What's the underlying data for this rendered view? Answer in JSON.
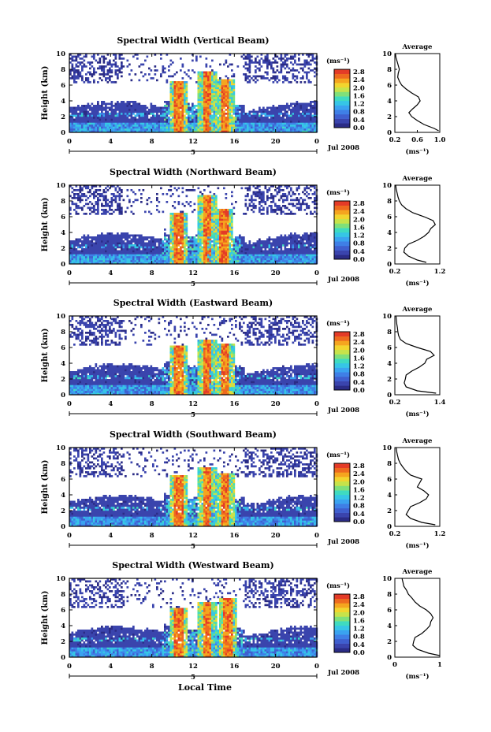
{
  "x_axis_label": "Local Time",
  "date_label": "Jul 2008",
  "colorbar": {
    "unit": "(ms⁻¹)",
    "ticks": [
      "2.8",
      "2.4",
      "2.0",
      "1.6",
      "1.2",
      "0.8",
      "0.4",
      "0.0"
    ],
    "colors": [
      "#2b2c86",
      "#3a44ad",
      "#3f5fcf",
      "#3f7fe6",
      "#3aa3f0",
      "#36c6e6",
      "#3fdbc0",
      "#7fe07a",
      "#c7e34a",
      "#f2d52e",
      "#f5a51f",
      "#ee6a1f",
      "#e43b27"
    ]
  },
  "average_title": "Average",
  "average_xlabel": "(ms⁻¹)",
  "chart_data": [
    {
      "type": "heatmap",
      "title": "Spectral Width (Vertical Beam)",
      "ylabel": "Height (km)",
      "xlabel": "Local Time",
      "x_ticks": [
        "0",
        "4",
        "8",
        "12",
        "16",
        "20",
        "0"
      ],
      "day_marker": "5",
      "xlim": [
        0,
        24
      ],
      "ylim": [
        0,
        10
      ],
      "y_ticks": [
        "0",
        "2",
        "4",
        "6",
        "8",
        "10"
      ],
      "bursts": [
        [
          10.5,
          6.4
        ],
        [
          13.3,
          7.6
        ],
        [
          15.0,
          6.7
        ]
      ],
      "profile": {
        "type": "line",
        "xlim": [
          0.2,
          1.0
        ],
        "x_ticks": [
          "0.2",
          "0.6",
          "1.0"
        ],
        "y_ticks": [
          "0",
          "2",
          "4",
          "6",
          "8",
          "10"
        ],
        "values": [
          0.98,
          0.9,
          0.72,
          0.6,
          0.5,
          0.45,
          0.52,
          0.6,
          0.65,
          0.62,
          0.5,
          0.4,
          0.32,
          0.28,
          0.25,
          0.26,
          0.28,
          0.26,
          0.24,
          0.22,
          0.21
        ],
        "heights": [
          0.2,
          0.5,
          1.0,
          1.5,
          2.0,
          2.5,
          3.0,
          3.5,
          4.0,
          4.5,
          5.0,
          5.5,
          6.0,
          6.5,
          7.0,
          7.5,
          8.0,
          8.5,
          9.0,
          9.5,
          10.0
        ]
      }
    },
    {
      "type": "heatmap",
      "title": "Spectral Width (Northward Beam)",
      "ylabel": "Height (km)",
      "xlabel": "Local Time",
      "x_ticks": [
        "0",
        "4",
        "8",
        "12",
        "16",
        "20",
        "0"
      ],
      "day_marker": "5",
      "xlim": [
        0,
        24
      ],
      "ylim": [
        0,
        10
      ],
      "y_ticks": [
        "0",
        "2",
        "4",
        "6",
        "8",
        "10"
      ],
      "bursts": [
        [
          10.5,
          6.4
        ],
        [
          13.3,
          8.6
        ],
        [
          14.9,
          7.0
        ]
      ],
      "profile": {
        "type": "line",
        "xlim": [
          0.2,
          1.2
        ],
        "x_ticks": [
          "0.2",
          "1.2"
        ],
        "y_ticks": [
          "0",
          "2",
          "4",
          "6",
          "8",
          "10"
        ],
        "values": [
          0.9,
          0.7,
          0.5,
          0.4,
          0.42,
          0.5,
          0.7,
          0.85,
          0.95,
          1.0,
          1.1,
          1.05,
          0.85,
          0.6,
          0.45,
          0.35,
          0.3,
          0.27,
          0.25,
          0.23,
          0.22
        ],
        "heights": [
          0.2,
          0.5,
          1.0,
          1.5,
          2.0,
          2.5,
          3.0,
          3.5,
          4.0,
          4.5,
          5.0,
          5.5,
          6.0,
          6.5,
          7.0,
          7.5,
          8.0,
          8.5,
          9.0,
          9.5,
          10.0
        ]
      }
    },
    {
      "type": "heatmap",
      "title": "Spectral Width (Eastward Beam)",
      "ylabel": "Height (km)",
      "xlabel": "Local Time",
      "x_ticks": [
        "0",
        "4",
        "8",
        "12",
        "16",
        "20",
        "0"
      ],
      "day_marker": "5",
      "xlim": [
        0,
        24
      ],
      "ylim": [
        0,
        10
      ],
      "y_ticks": [
        "0",
        "2",
        "4",
        "6",
        "8",
        "10"
      ],
      "bursts": [
        [
          10.5,
          6.2
        ],
        [
          13.3,
          6.8
        ],
        [
          15.0,
          6.5
        ]
      ],
      "profile": {
        "type": "line",
        "xlim": [
          0.2,
          1.4
        ],
        "x_ticks": [
          "0.2",
          "1.4"
        ],
        "y_ticks": [
          "0",
          "2",
          "4",
          "6",
          "8",
          "10"
        ],
        "values": [
          1.3,
          0.8,
          0.5,
          0.45,
          0.48,
          0.5,
          0.65,
          0.85,
          1.0,
          1.05,
          1.25,
          1.15,
          0.8,
          0.5,
          0.35,
          0.3,
          0.28,
          0.27,
          0.25,
          0.24,
          0.23
        ],
        "heights": [
          0.2,
          0.5,
          1.0,
          1.5,
          2.0,
          2.5,
          3.0,
          3.5,
          4.0,
          4.5,
          5.0,
          5.5,
          6.0,
          6.5,
          7.0,
          7.5,
          8.0,
          8.5,
          9.0,
          9.5,
          10.0
        ]
      }
    },
    {
      "type": "heatmap",
      "title": "Spectral Width (Southward Beam)",
      "ylabel": "Height (km)",
      "xlabel": "Local Time",
      "x_ticks": [
        "0",
        "4",
        "8",
        "12",
        "16",
        "20",
        "0"
      ],
      "day_marker": "5",
      "xlim": [
        0,
        24
      ],
      "ylim": [
        0,
        10
      ],
      "y_ticks": [
        "0",
        "2",
        "4",
        "6",
        "8",
        "10"
      ],
      "bursts": [
        [
          10.5,
          6.4
        ],
        [
          13.3,
          7.4
        ],
        [
          15.0,
          6.6
        ]
      ],
      "profile": {
        "type": "line",
        "xlim": [
          0.2,
          1.2
        ],
        "x_ticks": [
          "0.2",
          "1.2"
        ],
        "y_ticks": [
          "0",
          "2",
          "4",
          "6",
          "8",
          "10"
        ],
        "values": [
          1.1,
          0.8,
          0.55,
          0.45,
          0.5,
          0.55,
          0.75,
          0.9,
          0.95,
          0.85,
          0.7,
          0.75,
          0.8,
          0.55,
          0.45,
          0.38,
          0.32,
          0.28,
          0.26,
          0.24,
          0.23
        ],
        "heights": [
          0.2,
          0.5,
          1.0,
          1.5,
          2.0,
          2.5,
          3.0,
          3.5,
          4.0,
          4.5,
          5.0,
          5.5,
          6.0,
          6.5,
          7.0,
          7.5,
          8.0,
          8.5,
          9.0,
          9.5,
          10.0
        ]
      }
    },
    {
      "type": "heatmap",
      "title": "Spectral Width (Westward Beam)",
      "ylabel": "Height (km)",
      "xlabel": "Local Time",
      "x_ticks": [
        "0",
        "4",
        "8",
        "12",
        "16",
        "20",
        "0"
      ],
      "day_marker": "5",
      "xlim": [
        0,
        24
      ],
      "ylim": [
        0,
        10
      ],
      "y_ticks": [
        "0",
        "2",
        "4",
        "6",
        "8",
        "10"
      ],
      "bursts": [
        [
          10.5,
          6.2
        ],
        [
          13.3,
          7.0
        ],
        [
          15.3,
          7.4
        ]
      ],
      "profile": {
        "type": "line",
        "xlim": [
          0,
          1
        ],
        "x_ticks": [
          "0",
          "1"
        ],
        "y_ticks": [
          "0",
          "2",
          "4",
          "6",
          "8",
          "10"
        ],
        "values": [
          1.0,
          0.75,
          0.5,
          0.4,
          0.42,
          0.45,
          0.6,
          0.7,
          0.78,
          0.8,
          0.85,
          0.8,
          0.7,
          0.55,
          0.45,
          0.38,
          0.3,
          0.26,
          0.2,
          0.18,
          0.16
        ],
        "heights": [
          0.2,
          0.5,
          1.0,
          1.5,
          2.0,
          2.5,
          3.0,
          3.5,
          4.0,
          4.5,
          5.0,
          5.5,
          6.0,
          6.5,
          7.0,
          7.5,
          8.0,
          8.5,
          9.0,
          9.5,
          10.0
        ]
      }
    }
  ]
}
